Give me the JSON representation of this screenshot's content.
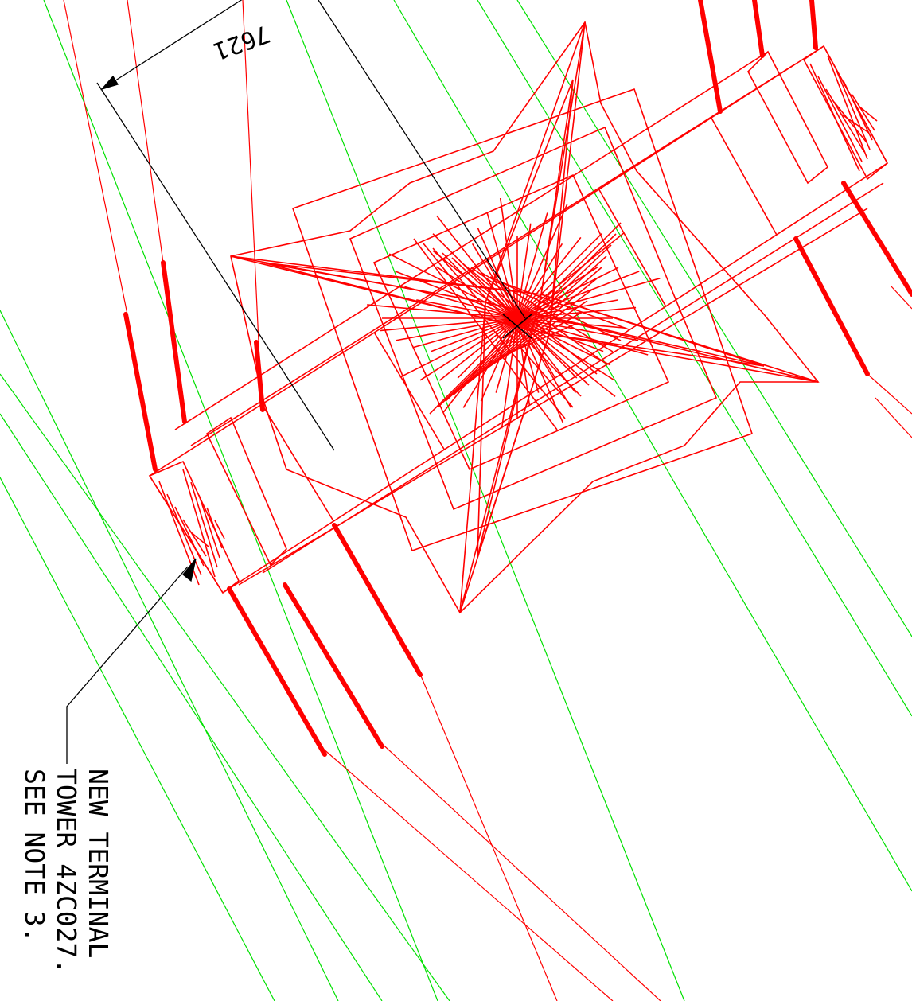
{
  "dimension": {
    "value": "7621"
  },
  "callout": {
    "lines": [
      "NEW TERMINAL",
      "TOWER 4ZC027.",
      "SEE NOTE 3."
    ]
  },
  "colors": {
    "tower": "#ff0000",
    "alignment": "#00e000",
    "annotation": "#000000",
    "background": "#ffffff"
  }
}
